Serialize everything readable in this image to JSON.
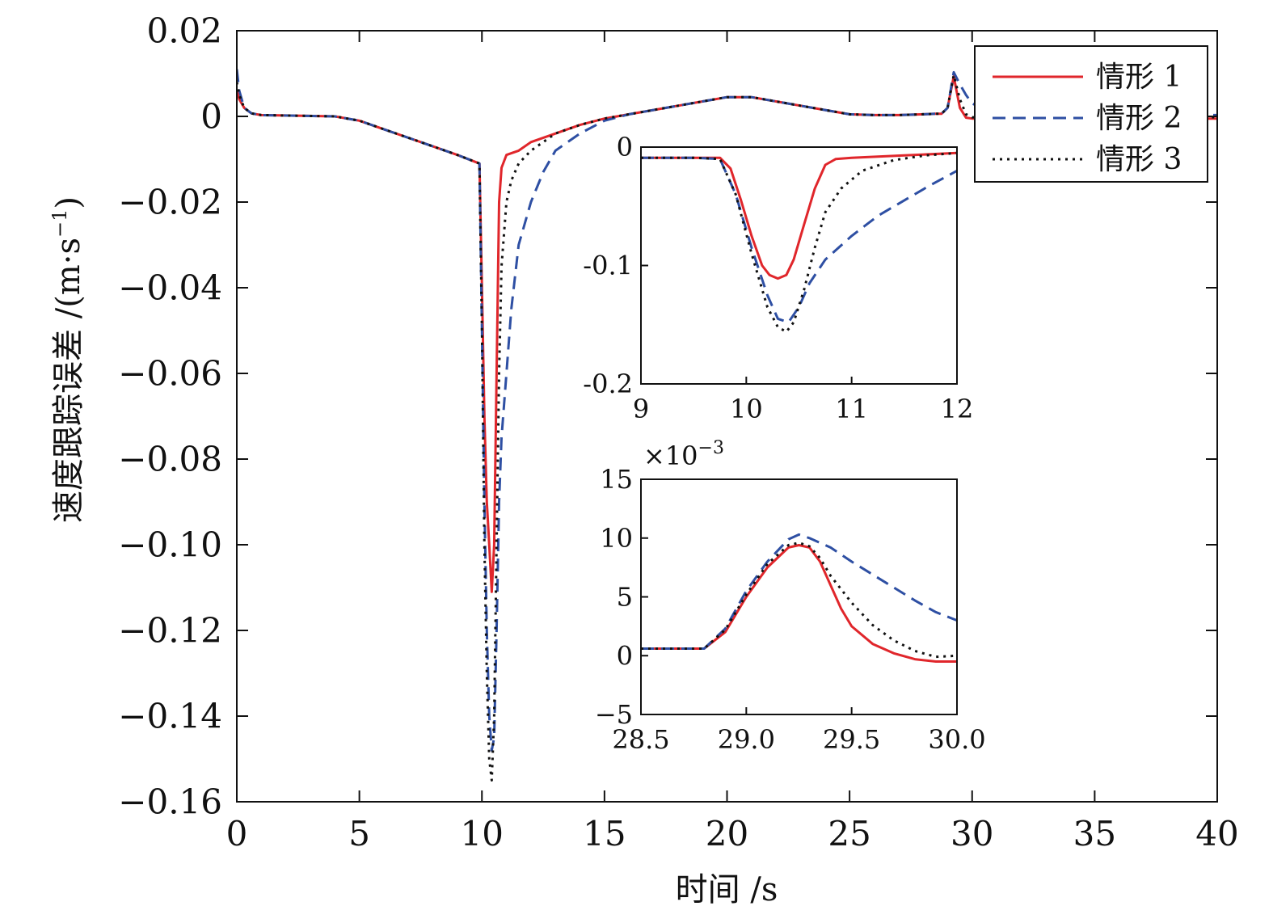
{
  "chart_data": [
    {
      "type": "line",
      "xlabel": "时间 /s",
      "ylabel_main": "速度跟踪误差 /(m·s",
      "ylabel_sup": "−1",
      "ylabel_close": ")",
      "xlim": [
        0,
        40
      ],
      "ylim": [
        -0.16,
        0.02
      ],
      "x_ticks": [
        0,
        5,
        10,
        15,
        20,
        25,
        30,
        35,
        40
      ],
      "x_tick_labels": [
        "0",
        "5",
        "10",
        "15",
        "20",
        "25",
        "30",
        "35",
        "40"
      ],
      "y_ticks": [
        0.02,
        0,
        -0.02,
        -0.04,
        -0.06,
        -0.08,
        -0.1,
        -0.12,
        -0.14,
        -0.16
      ],
      "y_tick_labels": [
        "0.02",
        "0",
        "−0.02",
        "−0.04",
        "−0.06",
        "−0.08",
        "−0.10",
        "−0.12",
        "−0.14",
        "−0.16"
      ],
      "grid": false,
      "legend_position": "top-right",
      "series": [
        {
          "name": "情形 1",
          "color": "#e0262b",
          "dash": "solid",
          "x": [
            0,
            0.1,
            0.3,
            0.6,
            1,
            4,
            5,
            6,
            7,
            8,
            9,
            9.9,
            10.0,
            10.1,
            10.2,
            10.3,
            10.4,
            10.5,
            10.6,
            10.7,
            10.8,
            11,
            11.5,
            12,
            13,
            14,
            15,
            16,
            17,
            18,
            19,
            20,
            21,
            22,
            23,
            24,
            25,
            26,
            27,
            28,
            28.5,
            28.75,
            29.0,
            29.25,
            29.5,
            29.75,
            30.0,
            31,
            40
          ],
          "y": [
            0.006,
            0.004,
            0.002,
            0.0007,
            0.0003,
            0,
            -0.001,
            -0.003,
            -0.005,
            -0.007,
            -0.009,
            -0.011,
            -0.04,
            -0.07,
            -0.09,
            -0.1,
            -0.111,
            -0.1,
            -0.06,
            -0.02,
            -0.012,
            -0.009,
            -0.008,
            -0.006,
            -0.004,
            -0.002,
            -0.0005,
            0.0005,
            0.0015,
            0.0025,
            0.0035,
            0.0045,
            0.0045,
            0.0035,
            0.0025,
            0.0015,
            0.0005,
            0.0003,
            0.0003,
            0.0005,
            0.0006,
            0.0006,
            0.002,
            0.0093,
            0.002,
            -0.0003,
            -0.0005,
            -0.0005,
            -0.0005
          ]
        },
        {
          "name": "情形 2",
          "color": "#2e4fa3",
          "dash": "dashed",
          "x": [
            0,
            0.1,
            0.3,
            0.6,
            1,
            4,
            5,
            6,
            7,
            8,
            9,
            9.9,
            10.0,
            10.1,
            10.2,
            10.3,
            10.4,
            10.5,
            10.6,
            10.7,
            10.8,
            11,
            11.2,
            11.5,
            12,
            12.5,
            13,
            14,
            15,
            16,
            17,
            18,
            19,
            20,
            21,
            22,
            23,
            24,
            25,
            26,
            27,
            28,
            28.5,
            28.75,
            29.0,
            29.25,
            29.5,
            29.75,
            30.0,
            31,
            40
          ],
          "y": [
            0.011,
            0.006,
            0.002,
            0.0007,
            0.0003,
            0,
            -0.001,
            -0.003,
            -0.005,
            -0.007,
            -0.009,
            -0.011,
            -0.05,
            -0.09,
            -0.12,
            -0.14,
            -0.148,
            -0.145,
            -0.12,
            -0.09,
            -0.075,
            -0.06,
            -0.045,
            -0.03,
            -0.02,
            -0.013,
            -0.008,
            -0.004,
            -0.001,
            0.0005,
            0.0015,
            0.0025,
            0.0035,
            0.0045,
            0.0045,
            0.0035,
            0.0025,
            0.0015,
            0.0005,
            0.0003,
            0.0003,
            0.0005,
            0.0006,
            0.0006,
            0.002,
            0.0103,
            0.0075,
            0.005,
            0.003,
            0.0005,
            0.0003
          ]
        },
        {
          "name": "情形 3",
          "color": "#111111",
          "dash": "dotted",
          "x": [
            0,
            0.1,
            0.3,
            0.6,
            1,
            4,
            5,
            6,
            7,
            8,
            9,
            9.9,
            10.0,
            10.1,
            10.2,
            10.3,
            10.4,
            10.5,
            10.6,
            10.7,
            10.8,
            11,
            11.2,
            11.5,
            12,
            13,
            14,
            15,
            16,
            17,
            18,
            19,
            20,
            21,
            22,
            23,
            24,
            25,
            26,
            27,
            28,
            28.5,
            28.75,
            29.0,
            29.25,
            29.5,
            29.75,
            30.0,
            31,
            40
          ],
          "y": [
            0.008,
            0.005,
            0.002,
            0.0007,
            0.0003,
            0,
            -0.001,
            -0.003,
            -0.005,
            -0.007,
            -0.009,
            -0.011,
            -0.05,
            -0.1,
            -0.13,
            -0.15,
            -0.155,
            -0.14,
            -0.1,
            -0.06,
            -0.035,
            -0.02,
            -0.015,
            -0.011,
            -0.008,
            -0.004,
            -0.002,
            -0.0005,
            0.0005,
            0.0015,
            0.0025,
            0.0035,
            0.0045,
            0.0045,
            0.0035,
            0.0025,
            0.0015,
            0.0005,
            0.0003,
            0.0003,
            0.0005,
            0.0006,
            0.0006,
            0.002,
            0.0096,
            0.004,
            0.0005,
            -0.0002,
            -0.0002,
            -0.0002
          ]
        }
      ]
    },
    {
      "type": "line",
      "xlim": [
        9,
        12
      ],
      "ylim": [
        -0.2,
        0
      ],
      "x_ticks": [
        9,
        10,
        11,
        12
      ],
      "x_tick_labels": [
        "9",
        "10",
        "11",
        "12"
      ],
      "y_ticks": [
        0,
        -0.1,
        -0.2
      ],
      "y_tick_labels": [
        "0",
        "-0.1",
        "-0.2"
      ],
      "grid": false,
      "series": [
        {
          "name": "情形 1",
          "color": "#e0262b",
          "dash": "solid",
          "x": [
            9,
            9.5,
            9.75,
            9.85,
            9.95,
            10.05,
            10.15,
            10.22,
            10.3,
            10.38,
            10.45,
            10.55,
            10.65,
            10.75,
            10.85,
            11,
            11.5,
            12
          ],
          "y": [
            -0.009,
            -0.009,
            -0.009,
            -0.018,
            -0.045,
            -0.075,
            -0.1,
            -0.108,
            -0.111,
            -0.108,
            -0.095,
            -0.065,
            -0.035,
            -0.015,
            -0.01,
            -0.009,
            -0.007,
            -0.005
          ]
        },
        {
          "name": "情形 2",
          "color": "#2e4fa3",
          "dash": "dashed",
          "x": [
            9,
            9.5,
            9.75,
            9.9,
            10.05,
            10.2,
            10.3,
            10.4,
            10.5,
            10.6,
            10.75,
            11,
            11.25,
            11.5,
            11.75,
            12
          ],
          "y": [
            -0.009,
            -0.009,
            -0.01,
            -0.04,
            -0.085,
            -0.125,
            -0.145,
            -0.148,
            -0.135,
            -0.115,
            -0.095,
            -0.075,
            -0.058,
            -0.045,
            -0.032,
            -0.02
          ]
        },
        {
          "name": "情形 3",
          "color": "#111111",
          "dash": "dotted",
          "x": [
            9,
            9.5,
            9.75,
            9.9,
            10.05,
            10.2,
            10.3,
            10.38,
            10.45,
            10.55,
            10.65,
            10.75,
            10.9,
            11.1,
            11.4,
            11.7,
            12
          ],
          "y": [
            -0.009,
            -0.009,
            -0.01,
            -0.04,
            -0.09,
            -0.135,
            -0.152,
            -0.156,
            -0.148,
            -0.12,
            -0.085,
            -0.055,
            -0.035,
            -0.02,
            -0.011,
            -0.007,
            -0.005
          ]
        }
      ]
    },
    {
      "type": "line",
      "scale_label_main": "×10",
      "scale_label_sup": "−3",
      "xlim": [
        28.5,
        30.0
      ],
      "ylim": [
        -5,
        15
      ],
      "x_ticks": [
        28.5,
        29.0,
        29.5,
        30.0
      ],
      "x_tick_labels": [
        "28.5",
        "29.0",
        "29.5",
        "30.0"
      ],
      "y_ticks": [
        15,
        10,
        5,
        0,
        -5
      ],
      "y_tick_labels": [
        "15",
        "10",
        "5",
        "0",
        "−5"
      ],
      "grid": false,
      "series": [
        {
          "name": "情形 1",
          "color": "#e0262b",
          "dash": "solid",
          "x": [
            28.5,
            28.6,
            28.75,
            28.8,
            28.9,
            29.0,
            29.1,
            29.2,
            29.25,
            29.3,
            29.35,
            29.4,
            29.45,
            29.5,
            29.6,
            29.7,
            29.8,
            29.9,
            30.0
          ],
          "y": [
            0.6,
            0.6,
            0.6,
            0.6,
            2.0,
            5.0,
            7.5,
            9.2,
            9.4,
            9.2,
            8.0,
            6.0,
            4.0,
            2.5,
            1.0,
            0.2,
            -0.3,
            -0.5,
            -0.5
          ]
        },
        {
          "name": "情形 2",
          "color": "#2e4fa3",
          "dash": "dashed",
          "x": [
            28.5,
            28.6,
            28.75,
            28.8,
            28.9,
            29.0,
            29.1,
            29.2,
            29.25,
            29.3,
            29.4,
            29.5,
            29.6,
            29.7,
            29.8,
            29.9,
            30.0
          ],
          "y": [
            0.6,
            0.6,
            0.6,
            0.6,
            2.3,
            5.5,
            8.0,
            9.9,
            10.3,
            10.0,
            9.2,
            8.0,
            6.9,
            5.8,
            4.7,
            3.7,
            3.0
          ]
        },
        {
          "name": "情形 3",
          "color": "#111111",
          "dash": "dotted",
          "x": [
            28.5,
            28.6,
            28.75,
            28.8,
            28.9,
            29.0,
            29.1,
            29.2,
            29.25,
            29.3,
            29.35,
            29.4,
            29.5,
            29.6,
            29.7,
            29.8,
            29.9,
            30.0
          ],
          "y": [
            0.6,
            0.6,
            0.6,
            0.6,
            2.2,
            5.2,
            7.8,
            9.4,
            9.6,
            9.3,
            8.3,
            6.8,
            4.5,
            2.6,
            1.3,
            0.4,
            -0.1,
            0.0
          ]
        }
      ]
    }
  ]
}
